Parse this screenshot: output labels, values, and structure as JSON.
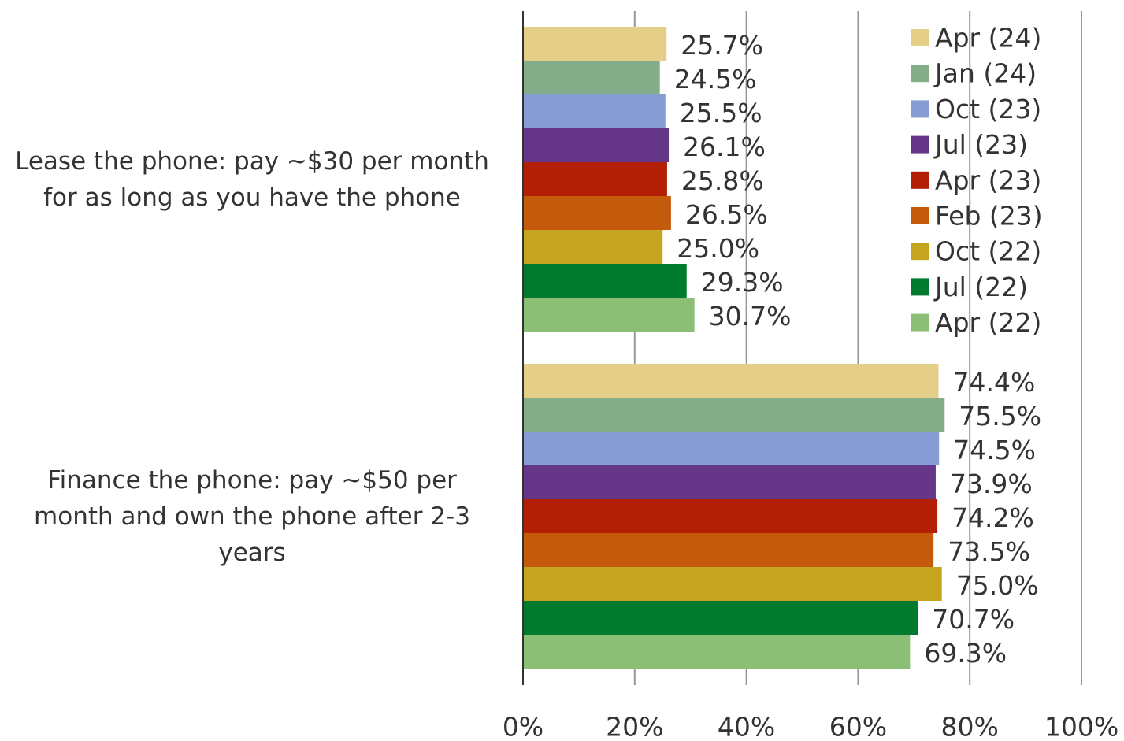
{
  "chart_data": {
    "type": "bar",
    "orientation": "horizontal",
    "categories": [
      "Lease the phone: pay ~$30 per month for as long as you have the phone",
      "Finance the phone: pay ~$50 per month and own the phone after 2-3 years"
    ],
    "series": [
      {
        "name": "Apr (24)",
        "color": "#e5cf88",
        "values": [
          25.7,
          74.4
        ],
        "value_labels": [
          "25.7%",
          "74.4%"
        ]
      },
      {
        "name": "Jan (24)",
        "color": "#84ae8a",
        "values": [
          24.5,
          75.5
        ],
        "value_labels": [
          "24.5%",
          "75.5%"
        ]
      },
      {
        "name": "Oct (23)",
        "color": "#869dd3",
        "values": [
          25.5,
          74.5
        ],
        "value_labels": [
          "25.5%",
          "74.5%"
        ]
      },
      {
        "name": "Jul (23)",
        "color": "#663689",
        "values": [
          26.1,
          73.9
        ],
        "value_labels": [
          "26.1%",
          "73.9%"
        ]
      },
      {
        "name": "Apr (23)",
        "color": "#b21f04",
        "values": [
          25.8,
          74.2
        ],
        "value_labels": [
          "25.8%",
          "74.2%"
        ]
      },
      {
        "name": "Feb (23)",
        "color": "#c45a0c",
        "values": [
          26.5,
          73.5
        ],
        "value_labels": [
          "26.5%",
          "73.5%"
        ]
      },
      {
        "name": "Oct (22)",
        "color": "#c5a520",
        "values": [
          25.0,
          75.0
        ],
        "value_labels": [
          "25.0%",
          "75.0%"
        ]
      },
      {
        "name": "Jul (22)",
        "color": "#007a2c",
        "values": [
          29.3,
          70.7
        ],
        "value_labels": [
          "29.3%",
          "70.7%"
        ]
      },
      {
        "name": "Apr (22)",
        "color": "#8cbf76",
        "values": [
          30.7,
          69.3
        ],
        "value_labels": [
          "30.7%",
          "69.3%"
        ]
      }
    ],
    "xlim": [
      0,
      100
    ],
    "xticks": [
      {
        "value": 0,
        "label": "0%"
      },
      {
        "value": 20,
        "label": "20%"
      },
      {
        "value": 40,
        "label": "40%"
      },
      {
        "value": 60,
        "label": "60%"
      },
      {
        "value": 80,
        "label": "80%"
      },
      {
        "value": 100,
        "label": "100%"
      }
    ],
    "grid": true,
    "legend": "upper right"
  }
}
